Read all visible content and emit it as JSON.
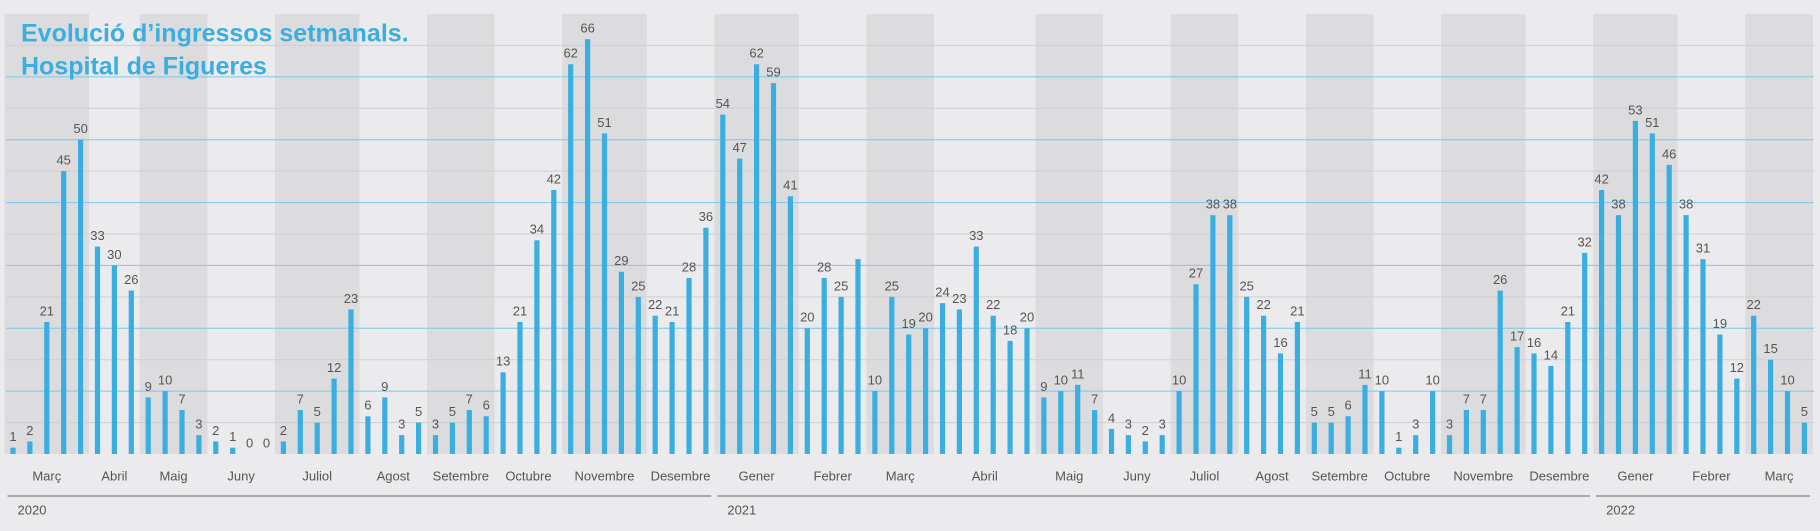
{
  "chart_data": {
    "type": "bar",
    "title": [
      "Evolució d’ingressos setmanals.",
      "Hospital de Figueres"
    ],
    "color": "#3aaee0",
    "ylim": [
      0,
      70
    ],
    "yticks": [
      10,
      20,
      30,
      40,
      50,
      60
    ],
    "minor_yticks": [
      5,
      15,
      25,
      35,
      45,
      55,
      65
    ],
    "years": [
      {
        "label": "2020",
        "months": [
          {
            "name": "Març",
            "values": [
              1,
              2,
              21,
              45,
              50
            ]
          },
          {
            "name": "Abril",
            "values": [
              33,
              30,
              26
            ]
          },
          {
            "name": "Maig",
            "values": [
              9,
              10,
              7,
              3
            ]
          },
          {
            "name": "Juny",
            "values": [
              2,
              1,
              0,
              0
            ]
          },
          {
            "name": "Juliol",
            "values": [
              2,
              7,
              5,
              12,
              23
            ]
          },
          {
            "name": "Agost",
            "values": [
              6,
              9,
              3,
              5
            ]
          },
          {
            "name": "Setembre",
            "values": [
              3,
              5,
              7,
              6
            ]
          },
          {
            "name": "Octubre",
            "values": [
              13,
              21,
              34,
              42
            ]
          },
          {
            "name": "Novembre",
            "values": [
              62,
              66,
              51,
              29,
              25
            ]
          },
          {
            "name": "Desembre",
            "values": [
              22,
              21,
              28,
              36
            ]
          }
        ]
      },
      {
        "label": "2021",
        "months": [
          {
            "name": "Gener",
            "values": [
              54,
              47,
              62,
              59,
              41
            ]
          },
          {
            "name": "Febrer",
            "values": [
              20,
              28,
              25,
              31
            ],
            "value_labels": [
              "20",
              "28",
              "25",
              null
            ]
          },
          {
            "name": "Març",
            "values": [
              10,
              25,
              19,
              20
            ]
          },
          {
            "name": "Abril",
            "values": [
              24,
              23,
              33,
              22,
              18,
              20
            ]
          },
          {
            "name": "Maig",
            "values": [
              9,
              10,
              11,
              7
            ]
          },
          {
            "name": "Juny",
            "values": [
              4,
              3,
              2,
              3
            ]
          },
          {
            "name": "Juliol",
            "values": [
              10,
              27,
              38,
              38
            ]
          },
          {
            "name": "Agost",
            "values": [
              25,
              22,
              16,
              21
            ]
          },
          {
            "name": "Setembre",
            "values": [
              5,
              5,
              6,
              11
            ]
          },
          {
            "name": "Octubre",
            "values": [
              10,
              1,
              3,
              10
            ]
          },
          {
            "name": "Novembre",
            "values": [
              3,
              7,
              7,
              26,
              17
            ]
          },
          {
            "name": "Desembre",
            "values": [
              16,
              14,
              21,
              32
            ]
          }
        ]
      },
      {
        "label": "2022",
        "months": [
          {
            "name": "Gener",
            "values": [
              42,
              38,
              53,
              51,
              46
            ]
          },
          {
            "name": "Febrer",
            "values": [
              38,
              31,
              19,
              12
            ]
          },
          {
            "name": "Març",
            "values": [
              22,
              15,
              10,
              5
            ]
          }
        ]
      }
    ]
  }
}
